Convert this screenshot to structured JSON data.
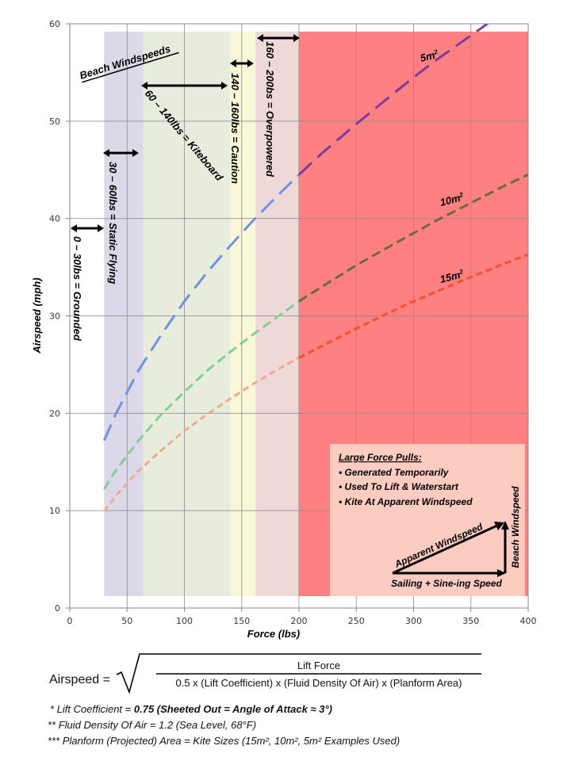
{
  "chart_data": {
    "type": "line",
    "title": "",
    "xlabel": "Force (lbs)",
    "ylabel": "Airspeed (mph)",
    "xlim": [
      0,
      400
    ],
    "ylim": [
      0,
      60
    ],
    "xticks": [
      "0",
      "50",
      "100",
      "150",
      "200",
      "250",
      "300",
      "350",
      "400"
    ],
    "yticks": [
      "0",
      "10",
      "20",
      "30",
      "40",
      "50",
      "60"
    ],
    "grid": true,
    "x": [
      30,
      40,
      60,
      80,
      100,
      120,
      140,
      160,
      180,
      200,
      220,
      250,
      280,
      300,
      320,
      350,
      380,
      400
    ],
    "series": [
      {
        "name": "5m²",
        "label_main": "5m",
        "label_sup": "2",
        "color_low": "#6f93e0",
        "color_high": "#7b3c9c",
        "values": [
          17.2,
          19.9,
          24.4,
          28.1,
          31.5,
          34.5,
          37.2,
          39.8,
          42.2,
          44.5,
          46.7,
          49.7,
          52.6,
          54.5,
          56.3,
          58.8,
          61.3,
          62.9
        ]
      },
      {
        "name": "10m²",
        "label_main": "10m",
        "label_sup": "2",
        "color_low": "#80d094",
        "color_high": "#6e6a3a",
        "values": [
          12.2,
          14.1,
          17.2,
          19.9,
          22.2,
          24.4,
          26.3,
          28.1,
          29.8,
          31.5,
          33.0,
          35.2,
          37.2,
          38.5,
          39.8,
          41.6,
          43.4,
          44.5
        ]
      },
      {
        "name": "15m²",
        "label_main": "15m",
        "label_sup": "2",
        "color_low": "#f0aa8c",
        "color_high": "#f25030",
        "values": [
          9.9,
          11.5,
          14.1,
          16.2,
          18.2,
          19.9,
          21.5,
          23.0,
          24.4,
          25.7,
          26.9,
          28.7,
          30.4,
          31.5,
          32.5,
          34.0,
          35.4,
          36.3
        ]
      }
    ],
    "bands": [
      {
        "from": 30,
        "to": 64,
        "color": "#dcd8ea"
      },
      {
        "from": 64,
        "to": 140,
        "color": "#e8ecdc"
      },
      {
        "from": 140,
        "to": 162,
        "color": "#f8f8d6"
      },
      {
        "from": 162,
        "to": 200,
        "color": "#efd8d8"
      },
      {
        "from": 200,
        "to": 400,
        "color": "#ff8080"
      }
    ],
    "annotations": {
      "beach_title": "Beach Windspeeds",
      "grounded": "0 – 30lbs = Grounded",
      "static_flying": "30 – 60lbs = Static Flying",
      "kiteboard": "60 – 140lbs = Kiteboard",
      "caution": "140 – 160lbs = Caution",
      "overpowered": "160 – 200bs = Overpowered"
    },
    "info_box": {
      "heading": "Large Force Pulls:",
      "bullets": [
        "• Generated Temporarily",
        "• Used To Lift & Waterstart",
        "• Kite At Apparent Windspeed"
      ],
      "apparent": "Apparent Windspeed",
      "sailing": "Sailing + Sine-ing Speed",
      "beach": "Beach Windspeed",
      "color": "#fcccc0"
    }
  },
  "formula": {
    "lhs": "Airspeed =",
    "numerator": "Lift Force",
    "denominator": "0.5 x (Lift Coefficient) x (Fluid Density Of Air) x (Planform Area)"
  },
  "notes": {
    "n1_prefix": "* Lift Coefficient = ",
    "n1_bold": "0.75 (Sheeted Out = Angle  of Attack ≈ 3°)",
    "n2": "** Fluid Density Of Air = 1.2 (Sea Level, 68°F)",
    "n3": "*** Planform (Projected) Area = Kite Sizes (15m², 10m², 5m² Examples Used)"
  }
}
